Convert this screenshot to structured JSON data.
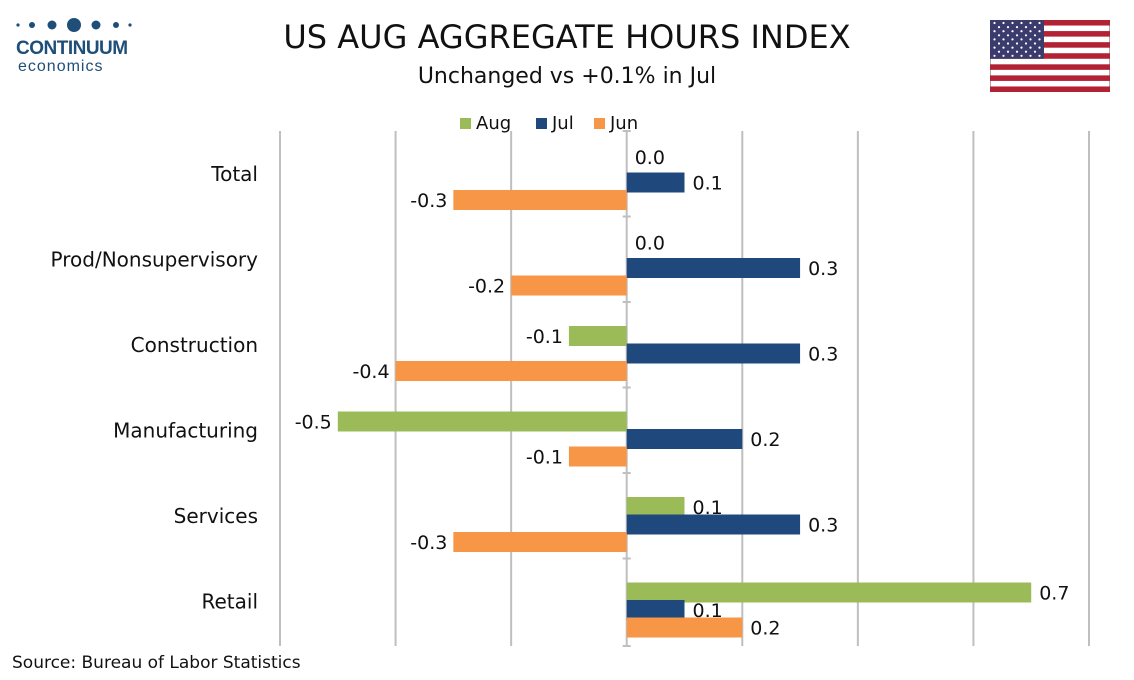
{
  "brand": {
    "name": "CONTINUUM",
    "sub": "economics"
  },
  "title": "US AUG AGGREGATE HOURS INDEX",
  "subtitle": "Unchanged vs +0.1% in Jul",
  "source": "Source: Bureau of Labor Statistics",
  "flag_icon": "us-flag-icon",
  "colors": {
    "aug": "#9bbb59",
    "jul": "#1f497d",
    "jun": "#f79646",
    "grid": "#bfbfbf",
    "brand": "#1f4e79"
  },
  "chart_data": {
    "type": "bar",
    "orientation": "horizontal",
    "categories": [
      "Total",
      "Prod/Nonsupervisory",
      "Construction",
      "Manufacturing",
      "Services",
      "Retail"
    ],
    "series": [
      {
        "name": "Aug",
        "values": [
          0.0,
          0.0,
          -0.1,
          -0.5,
          0.1,
          0.7
        ],
        "labels": [
          "0.0",
          "0.0",
          "-0.1",
          "-0.5",
          "0.1",
          "0.7"
        ]
      },
      {
        "name": "Jul",
        "values": [
          0.1,
          0.3,
          0.3,
          0.2,
          0.3,
          0.1
        ],
        "labels": [
          "0.1",
          "0.3",
          "0.3",
          "0.2",
          "0.3",
          "0.1"
        ]
      },
      {
        "name": "Jun",
        "values": [
          -0.3,
          -0.2,
          -0.4,
          -0.1,
          -0.3,
          0.2
        ],
        "labels": [
          "-0.3",
          "-0.2",
          "-0.4",
          "-0.1",
          "-0.3",
          "0.2"
        ]
      }
    ],
    "xlim": [
      -0.6,
      0.8
    ],
    "grid": true,
    "legend": "top-center"
  }
}
